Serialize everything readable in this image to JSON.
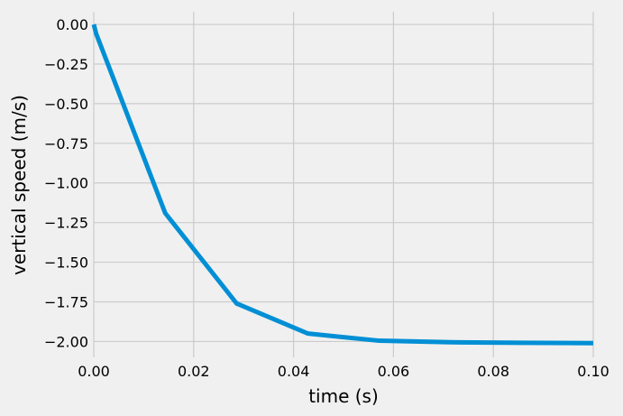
{
  "chart_data": {
    "type": "line",
    "title": "",
    "xlabel": "time (s)",
    "ylabel": "vertical speed (m/s)",
    "xlim": [
      0.0,
      0.1
    ],
    "ylim": [
      -2.1,
      0.08
    ],
    "grid": true,
    "xticks": [
      0.0,
      0.02,
      0.04,
      0.06,
      0.08,
      0.1
    ],
    "xtick_labels": [
      "0.00",
      "0.02",
      "0.04",
      "0.06",
      "0.08",
      "0.10"
    ],
    "yticks": [
      0.0,
      -0.25,
      -0.5,
      -0.75,
      -1.0,
      -1.25,
      -1.5,
      -1.75,
      -2.0
    ],
    "ytick_labels": [
      "0.00",
      "−0.25",
      "−0.50",
      "−0.75",
      "−1.00",
      "−1.25",
      "−1.50",
      "−1.75",
      "−2.00"
    ],
    "series": [
      {
        "color": "#008fd5",
        "x": [
          0.0,
          0.0005,
          0.0143,
          0.0286,
          0.0429,
          0.0571,
          0.0714,
          0.0857,
          0.1
        ],
        "y": [
          0.0,
          -0.06,
          -1.19,
          -1.76,
          -1.95,
          -1.995,
          -2.005,
          -2.008,
          -2.01
        ]
      }
    ]
  }
}
